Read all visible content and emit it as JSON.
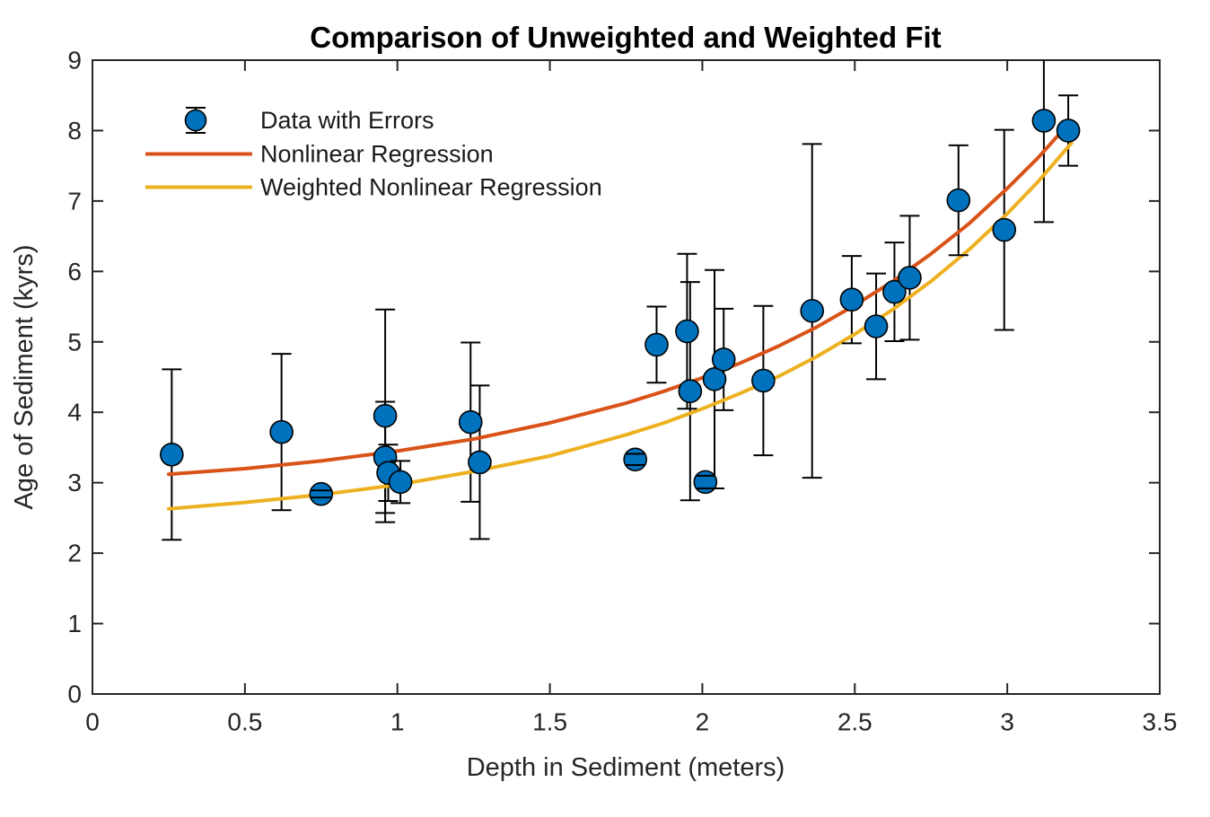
{
  "figure": {
    "background": "#ffffff"
  },
  "colors": {
    "axis": "#262626",
    "tick_text": "#262626",
    "error_bar": "#000000",
    "marker_fill": "#0072BD",
    "marker_edge": "#000000",
    "nonlinear_line": "#D95319",
    "weighted_line": "#EDB120"
  },
  "chart_data": {
    "type": "scatter",
    "title": "Comparison of Unweighted and Weighted Fit",
    "xlabel": "Depth in Sediment (meters)",
    "ylabel": "Age of Sediment (kyrs)",
    "xlim": [
      0,
      3.5
    ],
    "ylim": [
      0,
      9
    ],
    "grid": false,
    "box": true,
    "tick_dir": "in",
    "x_ticks": [
      0,
      0.5,
      1,
      1.5,
      2,
      2.5,
      3,
      3.5
    ],
    "x_tick_labels": [
      "0",
      "0.5",
      "1",
      "1.5",
      "2",
      "2.5",
      "3",
      "3.5"
    ],
    "y_ticks": [
      0,
      1,
      2,
      3,
      4,
      5,
      6,
      7,
      8,
      9
    ],
    "y_tick_labels": [
      "0",
      "1",
      "2",
      "3",
      "4",
      "5",
      "6",
      "7",
      "8",
      "9"
    ],
    "legend": {
      "position": "northwest",
      "boxed": false,
      "entries": [
        {
          "label": "Data with Errors",
          "type": "errorbar-marker",
          "color": "#0072BD"
        },
        {
          "label": "Nonlinear Regression",
          "type": "line",
          "color": "#D95319"
        },
        {
          "label": "Weighted Nonlinear Regression",
          "type": "line",
          "color": "#EDB120"
        }
      ]
    },
    "series": [
      {
        "name": "Data with Errors",
        "type": "errorbar-scatter",
        "marker": "o",
        "marker_color": "#0072BD",
        "marker_edge_color": "#000000",
        "errorbar_color": "#000000",
        "points": [
          {
            "x": 0.26,
            "y": 3.4,
            "err": 1.21
          },
          {
            "x": 0.62,
            "y": 3.72,
            "err": 1.11
          },
          {
            "x": 0.75,
            "y": 2.84,
            "err": 0.05
          },
          {
            "x": 0.96,
            "y": 3.95,
            "err": 1.51
          },
          {
            "x": 0.96,
            "y": 3.36,
            "err": 0.79
          },
          {
            "x": 0.97,
            "y": 3.14,
            "err": 0.4
          },
          {
            "x": 1.01,
            "y": 3.01,
            "err": 0.3
          },
          {
            "x": 1.24,
            "y": 3.86,
            "err": 1.13
          },
          {
            "x": 1.27,
            "y": 3.29,
            "err": 1.09
          },
          {
            "x": 1.78,
            "y": 3.33,
            "err": 0.08
          },
          {
            "x": 1.85,
            "y": 4.96,
            "err": 0.54
          },
          {
            "x": 1.95,
            "y": 5.15,
            "err": 1.1
          },
          {
            "x": 1.96,
            "y": 4.3,
            "err": 1.55
          },
          {
            "x": 2.01,
            "y": 3.01,
            "err": 0.09
          },
          {
            "x": 2.04,
            "y": 4.47,
            "err": 1.55
          },
          {
            "x": 2.07,
            "y": 4.75,
            "err": 0.72
          },
          {
            "x": 2.2,
            "y": 4.45,
            "err": 1.06
          },
          {
            "x": 2.36,
            "y": 5.44,
            "err": 2.37
          },
          {
            "x": 2.49,
            "y": 5.6,
            "err": 0.62
          },
          {
            "x": 2.57,
            "y": 5.22,
            "err": 0.75
          },
          {
            "x": 2.63,
            "y": 5.71,
            "err": 0.7
          },
          {
            "x": 2.68,
            "y": 5.91,
            "err": 0.88
          },
          {
            "x": 2.84,
            "y": 7.01,
            "err": 0.78
          },
          {
            "x": 2.99,
            "y": 6.59,
            "err": 1.42
          },
          {
            "x": 3.12,
            "y": 8.14,
            "err": 1.44
          },
          {
            "x": 3.2,
            "y": 8.0,
            "err": 0.5
          }
        ]
      },
      {
        "name": "Nonlinear Regression",
        "type": "line",
        "color": "#D95319",
        "x": [
          0.25,
          0.5,
          0.75,
          1.0,
          1.25,
          1.5,
          1.75,
          1.875,
          2.0,
          2.125,
          2.25,
          2.375,
          2.5,
          2.625,
          2.75,
          2.875,
          3.0,
          3.1,
          3.21
        ],
        "y": [
          3.12,
          3.2,
          3.31,
          3.45,
          3.62,
          3.85,
          4.13,
          4.3,
          4.49,
          4.7,
          4.94,
          5.21,
          5.52,
          5.86,
          6.25,
          6.68,
          7.18,
          7.61,
          8.14
        ]
      },
      {
        "name": "Weighted Nonlinear Regression",
        "type": "line",
        "color": "#EDB120",
        "x": [
          0.25,
          0.5,
          0.75,
          1.0,
          1.25,
          1.5,
          1.75,
          1.875,
          2.0,
          2.125,
          2.25,
          2.375,
          2.5,
          2.625,
          2.75,
          2.875,
          3.0,
          3.1,
          3.21
        ],
        "y": [
          2.63,
          2.72,
          2.83,
          2.97,
          3.16,
          3.38,
          3.68,
          3.85,
          4.05,
          4.27,
          4.51,
          4.79,
          5.11,
          5.46,
          5.86,
          6.31,
          6.82,
          7.27,
          7.82
        ]
      }
    ]
  }
}
